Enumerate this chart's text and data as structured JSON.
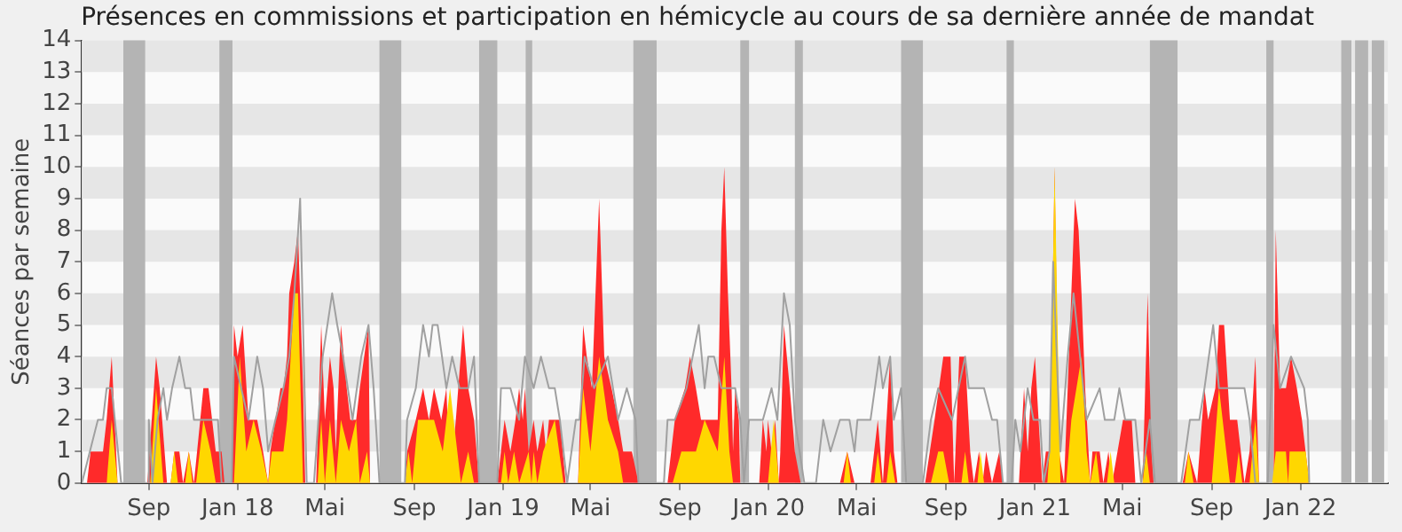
{
  "chart_data": {
    "type": "area",
    "title": "Présences en commissions et participation en hémicycle au cours de sa dernière année de mandat",
    "ylabel": "Séances par semaine",
    "xlim": [
      "2017-06-01",
      "2022-05-01"
    ],
    "xticks": [
      {
        "value": "2017-09-01",
        "label": "Sep"
      },
      {
        "value": "2018-01-01",
        "label": "Jan 18"
      },
      {
        "value": "2018-05-01",
        "label": "Mai"
      },
      {
        "value": "2018-09-01",
        "label": "Sep"
      },
      {
        "value": "2019-01-01",
        "label": "Jan 19"
      },
      {
        "value": "2019-05-01",
        "label": "Mai"
      },
      {
        "value": "2019-09-01",
        "label": "Sep"
      },
      {
        "value": "2020-01-01",
        "label": "Jan 20"
      },
      {
        "value": "2020-05-01",
        "label": "Mai"
      },
      {
        "value": "2020-09-01",
        "label": "Sep"
      },
      {
        "value": "2021-01-01",
        "label": "Jan 21"
      },
      {
        "value": "2021-05-01",
        "label": "Mai"
      },
      {
        "value": "2021-09-01",
        "label": "Sep"
      },
      {
        "value": "2022-01-01",
        "label": "Jan 22"
      }
    ],
    "ylim": [
      0,
      14
    ],
    "yticks": [
      0,
      1,
      2,
      3,
      4,
      5,
      6,
      7,
      8,
      9,
      10,
      11,
      12,
      13,
      14
    ],
    "legend": false,
    "marker": "none",
    "bands": [
      {
        "axis": "y",
        "from": 1,
        "to": 2,
        "color": "#e6e6e6"
      },
      {
        "axis": "y",
        "from": 3,
        "to": 4,
        "color": "#e6e6e6"
      },
      {
        "axis": "y",
        "from": 5,
        "to": 6,
        "color": "#e6e6e6"
      },
      {
        "axis": "y",
        "from": 7,
        "to": 8,
        "color": "#e6e6e6"
      },
      {
        "axis": "y",
        "from": 9,
        "to": 10,
        "color": "#e6e6e6"
      },
      {
        "axis": "y",
        "from": 11,
        "to": 12,
        "color": "#e6e6e6"
      },
      {
        "axis": "y",
        "from": 13,
        "to": 14,
        "color": "#e6e6e6"
      },
      {
        "axis": "x",
        "from": "2017-07-28",
        "to": "2017-08-27",
        "color": "#b4b4b4"
      },
      {
        "axis": "x",
        "from": "2017-12-07",
        "to": "2017-12-25",
        "color": "#b4b4b4"
      },
      {
        "axis": "x",
        "from": "2018-07-15",
        "to": "2018-08-14",
        "color": "#b4b4b4"
      },
      {
        "axis": "x",
        "from": "2018-11-29",
        "to": "2018-12-24",
        "color": "#b4b4b4"
      },
      {
        "axis": "x",
        "from": "2019-02-01",
        "to": "2019-02-10",
        "color": "#b4b4b4"
      },
      {
        "axis": "x",
        "from": "2019-06-29",
        "to": "2019-07-31",
        "color": "#b4b4b4"
      },
      {
        "axis": "x",
        "from": "2019-11-23",
        "to": "2019-12-05",
        "color": "#b4b4b4"
      },
      {
        "axis": "x",
        "from": "2020-02-06",
        "to": "2020-02-17",
        "color": "#b4b4b4"
      },
      {
        "axis": "x",
        "from": "2020-07-01",
        "to": "2020-07-31",
        "color": "#b4b4b4"
      },
      {
        "axis": "x",
        "from": "2020-11-23",
        "to": "2020-12-03",
        "color": "#b4b4b4"
      },
      {
        "axis": "x",
        "from": "2021-06-08",
        "to": "2021-07-16",
        "color": "#b4b4b4"
      },
      {
        "axis": "x",
        "from": "2021-11-15",
        "to": "2021-11-25",
        "color": "#b4b4b4"
      },
      {
        "axis": "x",
        "from": "2022-02-26",
        "to": "2022-03-12",
        "color": "#b4b4b4"
      },
      {
        "axis": "x",
        "from": "2022-03-17",
        "to": "2022-04-04",
        "color": "#b4b4b4"
      },
      {
        "axis": "x",
        "from": "2022-04-09",
        "to": "2022-04-26",
        "color": "#b4b4b4"
      }
    ],
    "series": [
      {
        "type": "area",
        "color": "#ff2a2a",
        "x": [
          "2017-06-08",
          "2017-06-13",
          "2017-06-30",
          "2017-07-05",
          "2017-07-12",
          "2017-07-20",
          "2017-08-30",
          "2017-09-11",
          "2017-09-16",
          "2017-09-26",
          "2017-10-01",
          "2017-10-06",
          "2017-10-13",
          "2017-10-18",
          "2017-10-26",
          "2017-11-02",
          "2017-11-15",
          "2017-11-22",
          "2017-12-02",
          "2017-12-10",
          "2017-12-14",
          "2017-12-24",
          "2017-12-27",
          "2018-01-01",
          "2018-01-08",
          "2018-01-16",
          "2018-01-18",
          "2018-01-23",
          "2018-01-28",
          "2018-02-05",
          "2018-02-12",
          "2018-02-15",
          "2018-02-22",
          "2018-03-01",
          "2018-03-05",
          "2018-03-10",
          "2018-03-13",
          "2018-03-20",
          "2018-03-25",
          "2018-04-01",
          "2018-04-04",
          "2018-04-19",
          "2018-04-26",
          "2018-05-01",
          "2018-05-08",
          "2018-05-13",
          "2018-05-16",
          "2018-05-23",
          "2018-05-31",
          "2018-06-05",
          "2018-06-13",
          "2018-06-18",
          "2018-06-30",
          "2018-07-02",
          "2018-08-19",
          "2018-08-22",
          "2018-09-03",
          "2018-09-13",
          "2018-09-21",
          "2018-09-28",
          "2018-10-08",
          "2018-10-15",
          "2018-10-20",
          "2018-10-28",
          "2018-11-07",
          "2018-11-14",
          "2018-11-22",
          "2018-11-29",
          "2018-12-24",
          "2018-12-29",
          "2019-01-03",
          "2019-01-11",
          "2019-01-18",
          "2019-01-23",
          "2019-01-28",
          "2019-01-31",
          "2019-02-05",
          "2019-02-12",
          "2019-02-17",
          "2019-02-25",
          "2019-03-01",
          "2019-03-05",
          "2019-03-13",
          "2019-03-20",
          "2019-03-28",
          "2019-04-14",
          "2019-04-21",
          "2019-04-26",
          "2019-05-03",
          "2019-05-13",
          "2019-05-20",
          "2019-05-30",
          "2019-06-08",
          "2019-06-15",
          "2019-06-27",
          "2019-07-06",
          "2019-08-15",
          "2019-08-25",
          "2019-09-08",
          "2019-09-15",
          "2019-09-23",
          "2019-09-30",
          "2019-10-23",
          "2019-10-28",
          "2019-11-01",
          "2019-11-06",
          "2019-11-11",
          "2019-11-13",
          "2019-11-16",
          "2019-11-21",
          "2019-11-23",
          "2019-12-19",
          "2019-12-24",
          "2019-12-29",
          "2019-12-31",
          "2020-01-05",
          "2020-01-10",
          "2020-01-15",
          "2020-01-17",
          "2020-01-22",
          "2020-01-30",
          "2020-02-06",
          "2020-02-14",
          "2020-04-08",
          "2020-04-18",
          "2020-04-28",
          "2020-05-20",
          "2020-05-30",
          "2020-06-06",
          "2020-06-16",
          "2020-06-21",
          "2020-06-26",
          "2020-08-03",
          "2020-08-16",
          "2020-08-28",
          "2020-09-07",
          "2020-09-12",
          "2020-09-19",
          "2020-09-27",
          "2020-10-04",
          "2020-10-09",
          "2020-10-16",
          "2020-10-21",
          "2020-10-26",
          "2020-11-03",
          "2020-11-13",
          "2020-11-18",
          "2020-12-10",
          "2020-12-17",
          "2020-12-22",
          "2020-12-27",
          "2021-01-01",
          "2021-01-06",
          "2021-01-11",
          "2021-01-16",
          "2021-01-21",
          "2021-01-26",
          "2021-01-28",
          "2021-02-03",
          "2021-02-10",
          "2021-02-15",
          "2021-02-20",
          "2021-02-25",
          "2021-03-02",
          "2021-03-06",
          "2021-03-11",
          "2021-03-18",
          "2021-03-21",
          "2021-03-31",
          "2021-04-05",
          "2021-04-12",
          "2021-04-17",
          "2021-05-02",
          "2021-05-14",
          "2021-05-19",
          "2021-05-29",
          "2021-06-05",
          "2021-06-10",
          "2021-06-13",
          "2021-07-23",
          "2021-07-31",
          "2021-08-12",
          "2021-08-22",
          "2021-08-27",
          "2021-09-06",
          "2021-09-11",
          "2021-09-18",
          "2021-09-26",
          "2021-10-06",
          "2021-10-16",
          "2021-10-23",
          "2021-10-31",
          "2021-11-05",
          "2021-11-25",
          "2021-11-28",
          "2021-12-04",
          "2021-12-12",
          "2021-12-19",
          "2021-12-27",
          "2022-01-03",
          "2022-01-08",
          "2022-01-13"
        ],
        "values": [
          0,
          1,
          1,
          2,
          4,
          0,
          0,
          4,
          3,
          0,
          0,
          1,
          1,
          0,
          1,
          0,
          3,
          3,
          1,
          1,
          0,
          0,
          5,
          4,
          5,
          2,
          2,
          2,
          2,
          1,
          0,
          1,
          2,
          3,
          3,
          4,
          6,
          7,
          8,
          3,
          0,
          0,
          5,
          2,
          4,
          3,
          1,
          5,
          3,
          2,
          2,
          3,
          5,
          0,
          0,
          1,
          2,
          3,
          2,
          3,
          2,
          3,
          0,
          2,
          5,
          3,
          2,
          0,
          0,
          1,
          2,
          1,
          2,
          3,
          2,
          3,
          1,
          2,
          1,
          2,
          1,
          2,
          2,
          2,
          0,
          0,
          5,
          4,
          3,
          9,
          4,
          3,
          2,
          1,
          1,
          0,
          0,
          2,
          3,
          4,
          3,
          2,
          2,
          8,
          10,
          6,
          3,
          1,
          3,
          2,
          0,
          0,
          2,
          1,
          2,
          1,
          2,
          0,
          1,
          5,
          3,
          1,
          0,
          0,
          1,
          0,
          0,
          2,
          0,
          4,
          1,
          0,
          0,
          2,
          4,
          4,
          0,
          4,
          4,
          1,
          0,
          1,
          0,
          1,
          0,
          1,
          0,
          0,
          3,
          1,
          3,
          4,
          2,
          0,
          1,
          1,
          7,
          10,
          1,
          0,
          3,
          6,
          9,
          8,
          6,
          3,
          0,
          1,
          1,
          0,
          1,
          0,
          2,
          2,
          0,
          0,
          6,
          1,
          0,
          0,
          1,
          0,
          3,
          2,
          3,
          5,
          5,
          2,
          2,
          0,
          1,
          4,
          0,
          0,
          8,
          3,
          3,
          4,
          3,
          2,
          1,
          0
        ]
      },
      {
        "type": "area",
        "color": "#ffd700",
        "x": [
          "2017-07-05",
          "2017-07-12",
          "2017-07-20",
          "2017-09-03",
          "2017-09-11",
          "2017-09-21",
          "2017-10-01",
          "2017-10-06",
          "2017-10-11",
          "2017-10-21",
          "2017-10-26",
          "2017-10-31",
          "2017-11-05",
          "2017-11-15",
          "2017-11-25",
          "2017-12-02",
          "2017-12-27",
          "2018-01-04",
          "2018-01-13",
          "2018-01-23",
          "2018-02-03",
          "2018-02-12",
          "2018-02-17",
          "2018-03-05",
          "2018-03-10",
          "2018-03-20",
          "2018-03-25",
          "2018-04-01",
          "2018-04-21",
          "2018-04-26",
          "2018-05-01",
          "2018-05-08",
          "2018-05-16",
          "2018-05-23",
          "2018-06-03",
          "2018-06-13",
          "2018-06-18",
          "2018-06-28",
          "2018-07-02",
          "2018-08-19",
          "2018-08-24",
          "2018-08-29",
          "2018-09-06",
          "2018-09-21",
          "2018-09-28",
          "2018-10-10",
          "2018-10-20",
          "2018-11-04",
          "2018-11-14",
          "2018-11-22",
          "2018-12-29",
          "2019-01-03",
          "2019-01-08",
          "2019-01-16",
          "2019-01-23",
          "2019-02-05",
          "2019-02-09",
          "2019-02-12",
          "2019-02-17",
          "2019-02-25",
          "2019-03-13",
          "2019-03-25",
          "2019-04-14",
          "2019-04-21",
          "2019-05-01",
          "2019-05-13",
          "2019-05-25",
          "2019-06-08",
          "2019-06-15",
          "2019-08-22",
          "2019-09-03",
          "2019-09-23",
          "2019-10-05",
          "2019-10-23",
          "2019-11-01",
          "2019-11-08",
          "2019-11-13",
          "2019-11-21",
          "2019-12-31",
          "2020-01-08",
          "2020-01-15",
          "2020-04-13",
          "2020-04-18",
          "2020-04-23",
          "2020-05-25",
          "2020-05-30",
          "2020-06-04",
          "2020-06-11",
          "2020-06-16",
          "2020-06-23",
          "2020-08-11",
          "2020-08-21",
          "2020-08-28",
          "2020-09-05",
          "2020-09-22",
          "2020-09-27",
          "2020-10-02",
          "2020-10-14",
          "2020-10-18",
          "2020-10-23",
          "2021-01-18",
          "2021-01-21",
          "2021-01-26",
          "2021-01-28",
          "2021-02-05",
          "2021-02-13",
          "2021-02-20",
          "2021-03-06",
          "2021-03-13",
          "2021-03-18",
          "2021-03-26",
          "2021-03-31",
          "2021-04-10",
          "2021-04-15",
          "2021-04-20",
          "2021-05-29",
          "2021-06-03",
          "2021-06-08",
          "2021-07-26",
          "2021-07-31",
          "2021-08-07",
          "2021-09-01",
          "2021-09-11",
          "2021-09-21",
          "2021-09-26",
          "2021-10-03",
          "2021-10-08",
          "2021-10-13",
          "2021-10-23",
          "2021-10-31",
          "2021-11-05",
          "2021-11-23",
          "2021-11-28",
          "2021-12-12",
          "2021-12-15",
          "2021-12-17",
          "2022-01-08",
          "2022-01-13"
        ],
        "values": [
          0,
          2,
          0,
          0,
          3,
          0,
          0,
          1,
          0,
          0,
          1,
          0,
          0,
          2,
          1,
          0,
          0,
          4,
          1,
          2,
          1,
          0,
          1,
          1,
          2,
          6,
          6,
          0,
          0,
          2,
          0,
          2,
          0,
          2,
          1,
          2,
          0,
          1,
          0,
          0,
          1,
          0,
          2,
          2,
          2,
          1,
          3,
          0,
          1,
          0,
          0,
          1,
          0,
          1,
          0,
          1,
          0,
          1,
          0,
          1,
          2,
          0,
          0,
          3,
          1,
          4,
          2,
          1,
          0,
          0,
          1,
          1,
          2,
          1,
          4,
          1,
          0,
          0,
          0,
          2,
          0,
          0,
          1,
          0,
          0,
          1,
          0,
          0,
          1,
          0,
          0,
          1,
          1,
          0,
          0,
          1,
          0,
          0,
          1,
          0,
          0,
          1,
          7,
          10,
          0,
          0,
          2,
          4,
          1,
          0,
          1,
          0,
          0,
          1,
          0,
          0,
          1,
          0,
          0,
          1,
          0,
          0,
          3,
          1,
          0,
          0,
          1,
          0,
          0,
          2,
          0,
          0,
          1,
          1,
          0,
          1,
          1,
          0
        ]
      },
      {
        "type": "line",
        "color": "#a0a0a0",
        "x": [
          "2017-06-01",
          "2017-06-23",
          "2017-06-30",
          "2017-07-05",
          "2017-07-12",
          "2017-07-25",
          "2017-08-30",
          "2017-09-01",
          "2017-09-06",
          "2017-09-13",
          "2017-09-21",
          "2017-09-26",
          "2017-10-03",
          "2017-10-13",
          "2017-10-21",
          "2017-10-28",
          "2017-11-02",
          "2017-12-05",
          "2017-12-10",
          "2017-12-24",
          "2017-12-27",
          "2018-01-16",
          "2018-01-28",
          "2018-02-05",
          "2018-02-12",
          "2018-02-22",
          "2018-03-05",
          "2018-03-13",
          "2018-03-20",
          "2018-03-28",
          "2018-04-06",
          "2018-04-16",
          "2018-04-28",
          "2018-05-11",
          "2018-05-18",
          "2018-05-26",
          "2018-06-08",
          "2018-06-20",
          "2018-06-30",
          "2018-07-07",
          "2018-07-15",
          "2018-08-19",
          "2018-08-22",
          "2018-09-03",
          "2018-09-13",
          "2018-09-21",
          "2018-09-26",
          "2018-10-03",
          "2018-10-15",
          "2018-10-23",
          "2018-11-02",
          "2018-11-14",
          "2018-11-22",
          "2018-11-29",
          "2018-12-24",
          "2018-12-29",
          "2019-01-11",
          "2019-01-23",
          "2019-01-31",
          "2019-02-12",
          "2019-02-22",
          "2019-03-05",
          "2019-03-13",
          "2019-03-20",
          "2019-03-30",
          "2019-04-11",
          "2019-04-16",
          "2019-04-23",
          "2019-05-06",
          "2019-05-25",
          "2019-06-08",
          "2019-06-20",
          "2019-07-02",
          "2019-07-06",
          "2019-08-10",
          "2019-08-15",
          "2019-08-25",
          "2019-09-10",
          "2019-09-27",
          "2019-10-05",
          "2019-10-10",
          "2019-10-18",
          "2019-10-28",
          "2019-11-16",
          "2019-11-23",
          "2019-11-28",
          "2019-12-05",
          "2019-12-24",
          "2020-01-05",
          "2020-01-13",
          "2020-01-22",
          "2020-01-30",
          "2020-02-06",
          "2020-02-19",
          "2020-03-06",
          "2020-03-16",
          "2020-03-26",
          "2020-04-08",
          "2020-04-21",
          "2020-04-28",
          "2020-05-02",
          "2020-05-20",
          "2020-06-01",
          "2020-06-06",
          "2020-06-16",
          "2020-06-21",
          "2020-07-01",
          "2020-07-08",
          "2020-07-31",
          "2020-08-11",
          "2020-08-21",
          "2020-09-09",
          "2020-09-27",
          "2020-10-02",
          "2020-10-23",
          "2020-11-03",
          "2020-11-10",
          "2020-11-18",
          "2020-11-30",
          "2020-12-05",
          "2020-12-12",
          "2020-12-22",
          "2020-12-30",
          "2021-01-08",
          "2021-01-13",
          "2021-01-21",
          "2021-01-26",
          "2021-02-05",
          "2021-02-15",
          "2021-02-23",
          "2021-03-13",
          "2021-03-31",
          "2021-04-07",
          "2021-04-20",
          "2021-04-27",
          "2021-05-05",
          "2021-05-19",
          "2021-05-27",
          "2021-06-08",
          "2021-06-15",
          "2021-07-21",
          "2021-08-02",
          "2021-08-15",
          "2021-08-22",
          "2021-09-03",
          "2021-09-11",
          "2021-09-28",
          "2021-10-16",
          "2021-10-23",
          "2021-10-31",
          "2021-11-17",
          "2021-11-25",
          "2021-12-04",
          "2021-12-19",
          "2022-01-06",
          "2022-01-11",
          "2022-01-13"
        ],
        "values": [
          0,
          2,
          2,
          3,
          3,
          0,
          0,
          2,
          0,
          2,
          3,
          2,
          3,
          4,
          3,
          3,
          2,
          2,
          0,
          0,
          4,
          2,
          4,
          3,
          1,
          2,
          3,
          4,
          6,
          9,
          0,
          0,
          4,
          6,
          5,
          4,
          2,
          4,
          5,
          3,
          0,
          0,
          2,
          3,
          5,
          4,
          5,
          5,
          3,
          4,
          3,
          3,
          4,
          0,
          0,
          3,
          3,
          2,
          4,
          3,
          4,
          3,
          3,
          2,
          0,
          2,
          2,
          4,
          3,
          4,
          2,
          3,
          2,
          0,
          0,
          2,
          2,
          3,
          5,
          3,
          4,
          4,
          3,
          3,
          2,
          0,
          2,
          2,
          3,
          2,
          6,
          5,
          2,
          0,
          0,
          2,
          1,
          2,
          2,
          1,
          2,
          2,
          4,
          3,
          4,
          2,
          3,
          0,
          0,
          2,
          3,
          2,
          4,
          3,
          3,
          2,
          2,
          0,
          0,
          2,
          1,
          3,
          2,
          2,
          0,
          1,
          7,
          1,
          4,
          6,
          2,
          3,
          2,
          2,
          3,
          2,
          2,
          0,
          2,
          0,
          0,
          2,
          2,
          3,
          5,
          3,
          3,
          3,
          2,
          0,
          0,
          5,
          3,
          4,
          3,
          2,
          0
        ]
      }
    ]
  }
}
